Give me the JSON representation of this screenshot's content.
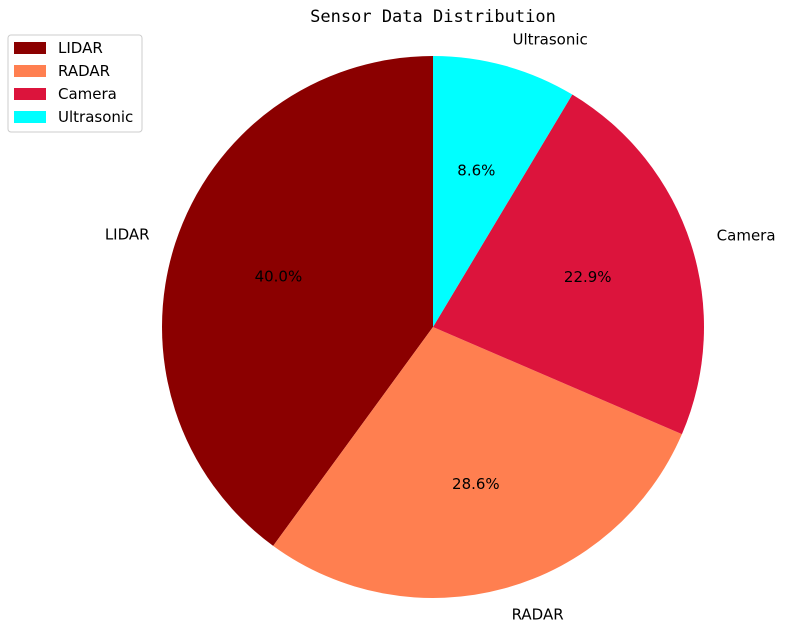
{
  "chart_data": {
    "type": "pie",
    "title": "Sensor Data Distribution",
    "categories": [
      "LIDAR",
      "RADAR",
      "Camera",
      "Ultrasonic"
    ],
    "values": [
      40.0,
      28.6,
      22.9,
      8.6
    ],
    "value_labels": [
      "40.0%",
      "28.6%",
      "22.9%",
      "8.6%"
    ],
    "colors": [
      "#8b0000",
      "#ff7f50",
      "#dc143c",
      "#00ffff"
    ],
    "start_angle_deg": 90,
    "direction": "counterclockwise",
    "legend": {
      "placement": "top-left",
      "entries": [
        "LIDAR",
        "RADAR",
        "Camera",
        "Ultrasonic"
      ]
    }
  }
}
